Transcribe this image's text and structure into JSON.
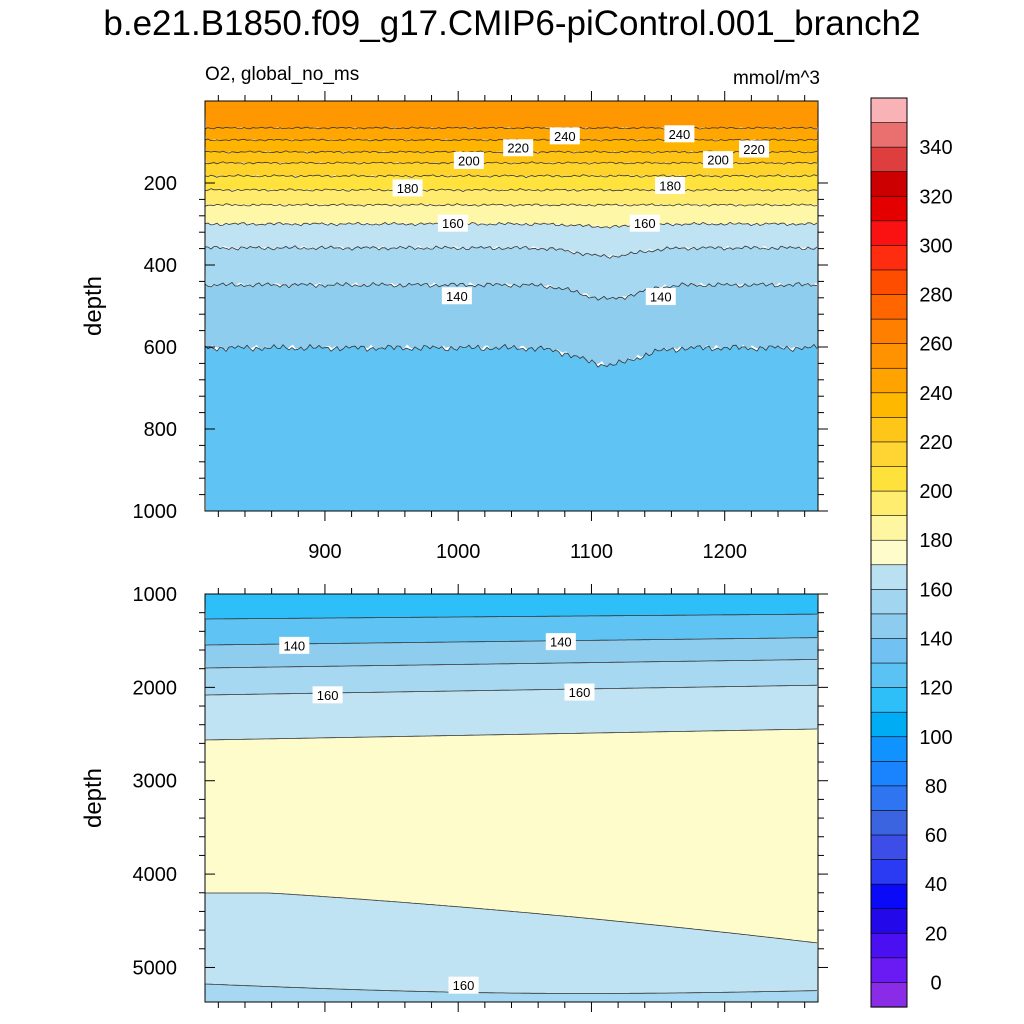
{
  "title": "b.e21.B1850.f09_g17.CMIP6-piControl.001_branch2",
  "left_label": "O2, global_no_ms",
  "right_label": "mmol/m^3",
  "chart_data": [
    {
      "type": "contour",
      "panel": "upper",
      "xlabel": "",
      "ylabel": "depth",
      "xlim": [
        810,
        1270
      ],
      "ylim": [
        1000,
        0
      ],
      "x_ticks": [
        900,
        1000,
        1100,
        1200
      ],
      "y_ticks": [
        200,
        400,
        600,
        800,
        1000
      ],
      "contour_labels": [
        {
          "text": "240",
          "x": 1080,
          "y": 85
        },
        {
          "text": "240",
          "x": 1166,
          "y": 80
        },
        {
          "text": "220",
          "x": 1045,
          "y": 114
        },
        {
          "text": "220",
          "x": 1222,
          "y": 117
        },
        {
          "text": "200",
          "x": 1008,
          "y": 145
        },
        {
          "text": "200",
          "x": 1195,
          "y": 143
        },
        {
          "text": "180",
          "x": 962,
          "y": 212
        },
        {
          "text": "180",
          "x": 1159,
          "y": 206
        },
        {
          "text": "160",
          "x": 996,
          "y": 298
        },
        {
          "text": "160",
          "x": 1140,
          "y": 298
        },
        {
          "text": "140",
          "x": 999,
          "y": 475
        },
        {
          "text": "140",
          "x": 1152,
          "y": 477
        }
      ]
    },
    {
      "type": "contour",
      "panel": "lower",
      "xlabel": "",
      "ylabel": "depth",
      "xlim": [
        810,
        1270
      ],
      "ylim": [
        5370,
        1000
      ],
      "y_ticks": [
        1000,
        2000,
        3000,
        4000,
        5000
      ],
      "contour_labels": [
        {
          "text": "140",
          "x": 877,
          "y": 1550
        },
        {
          "text": "140",
          "x": 1077,
          "y": 1510
        },
        {
          "text": "160",
          "x": 902,
          "y": 2080
        },
        {
          "text": "160",
          "x": 1091,
          "y": 2050
        },
        {
          "text": "160",
          "x": 1004,
          "y": 5190
        }
      ]
    }
  ],
  "colorbar": {
    "labels": [
      "340",
      "320",
      "300",
      "280",
      "260",
      "240",
      "220",
      "200",
      "180",
      "160",
      "140",
      "120",
      "100",
      "80",
      "60",
      "40",
      "20",
      "0"
    ],
    "colors": [
      "#f9b2b5",
      "#ea7070",
      "#df3e3e",
      "#cc0000",
      "#e50000",
      "#fa1111",
      "#ff2d0f",
      "#ff4d00",
      "#ff6600",
      "#ff7f00",
      "#ff9200",
      "#ffa300",
      "#ffb800",
      "#ffc61a",
      "#ffd533",
      "#ffe13b",
      "#ffed70",
      "#fff6a2",
      "#fefccb",
      "#bae1f2",
      "#a1d5f0",
      "#8dcbef",
      "#72c1f3",
      "#5ac3f3",
      "#2fbff8",
      "#00acf4",
      "#1193ff",
      "#1a84ff",
      "#2f74f0",
      "#3a64e0",
      "#3c4de8",
      "#2b3af3",
      "#0a0af8",
      "#2308ea",
      "#4a10f2",
      "#6a1af2",
      "#8a2be8"
    ]
  }
}
